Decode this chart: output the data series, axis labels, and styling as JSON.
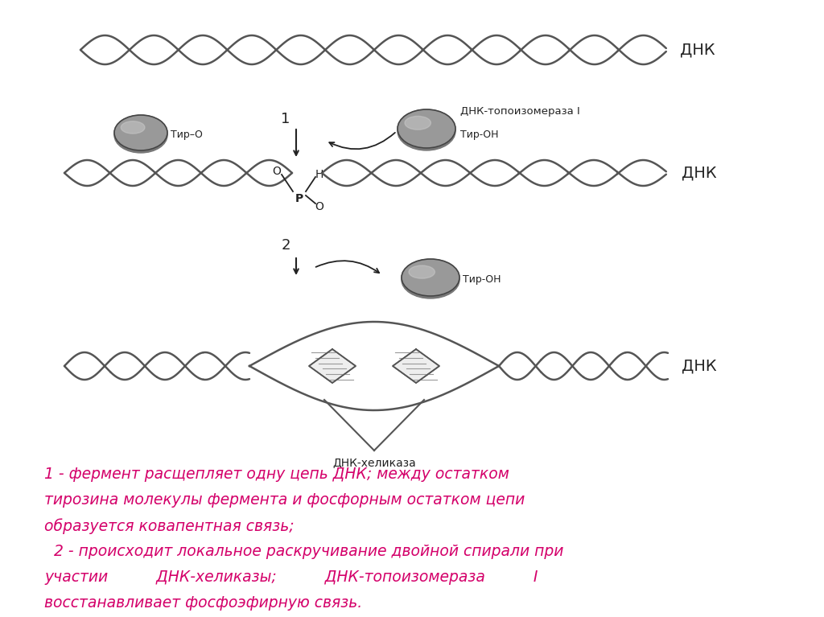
{
  "bg_color": "#ffffff",
  "text_color_pink": "#d4006a",
  "text_color_dark": "#222222",
  "dna_color": "#555555",
  "enzyme_color_light": "#bbbbbb",
  "enzyme_color_dark": "#888888",
  "enzyme_outline": "#444444",
  "title_dnk1": "ДНК",
  "label_topoizomeraza": "ДНК-топоизомераза I",
  "label_tir_oh_right": "Тир-ОН",
  "label_tir_o_left": "Тир-О",
  "label_tir_o_dash": "–",
  "label_dnk2": "ДНК",
  "label_dnk3": "ДНК",
  "label_helikaza": "ДНК-хеликаза",
  "label_step1": "1",
  "label_step2": "2",
  "bottom_text_line1": "1 - фермент расщепляет одну цепь ДНК; между остатком",
  "bottom_text_line2": "тирозина молекулы фермента и фосфорным остатком цепи",
  "bottom_text_line3": "образуется ковапентная связь;",
  "bottom_text_line4": "  2 - происходит локальное раскручивание двойной спирали при",
  "bottom_text_line5": "участии          ДНК-хеликазы;          ДНК-топоизомераза          I",
  "bottom_text_line6": "восстанавливает фосфоэфирную связь."
}
